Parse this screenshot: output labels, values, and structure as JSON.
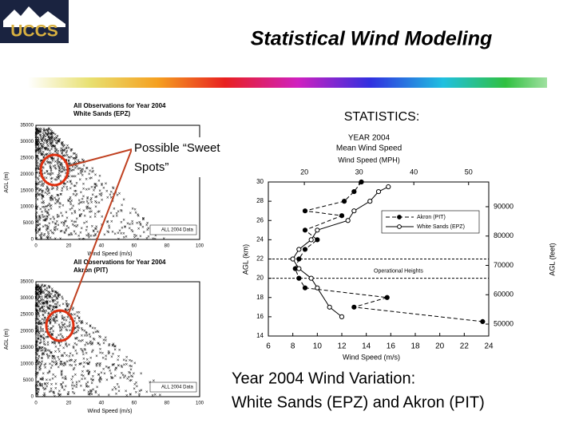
{
  "header": {
    "logo": "UCCS",
    "title": "Statistical Wind Modeling"
  },
  "stats_label": "STATISTICS:",
  "annotation": [
    "Possible “Sweet",
    "Spots”"
  ],
  "caption": [
    "Year 2004 Wind Variation:",
    "White Sands (EPZ) and Akron (PIT)"
  ],
  "scatter_plots": [
    {
      "title": [
        "All Observations for Year 2004",
        "White Sands (EPZ)"
      ],
      "y_label": "AGL (m)",
      "x_label": "Wind Speed (m/s)",
      "yticks": [
        0,
        5000,
        10000,
        15000,
        20000,
        25000,
        30000,
        35000
      ],
      "xticks": [
        0,
        20,
        40,
        60,
        80,
        100
      ],
      "legend": "ALL 2004 Data"
    },
    {
      "title": [
        "All Observations for Year 2004",
        "Akron (PIT)"
      ],
      "y_label": "AGL (m)",
      "x_label": "Wind Speed (m/s)",
      "yticks": [
        0,
        5000,
        10000,
        15000,
        20000,
        25000,
        30000,
        35000
      ],
      "xticks": [
        0,
        20,
        40,
        60,
        80,
        100
      ],
      "legend": "ALL 2004 Data"
    }
  ],
  "mean_chart": {
    "title": [
      "YEAR 2004",
      "Mean Wind Speed"
    ],
    "top_label": "Wind Speed (MPH)",
    "top_ticks": [
      20,
      30,
      40,
      50
    ],
    "x_label": "Wind Speed (m/s)",
    "xlim": [
      6,
      24
    ],
    "xticks": [
      6,
      8,
      10,
      12,
      14,
      16,
      18,
      20,
      22,
      24
    ],
    "y_label": "AGL (km)",
    "ylim": [
      14,
      30
    ],
    "yticks": [
      14,
      16,
      18,
      20,
      22,
      24,
      26,
      28,
      30
    ],
    "y2_label": "AGL (feet)",
    "y2ticks": [
      50000,
      60000,
      70000,
      80000,
      90000
    ],
    "operational_label": "Operational Heights",
    "operational_band": [
      20,
      22
    ],
    "series": [
      {
        "name": "Akron (PIT)",
        "color": "#000000",
        "filled": true,
        "dash": true,
        "x": [
          13.6,
          13.0,
          12.2,
          9.0,
          12.0,
          9.0,
          10.0,
          9.0,
          8.5,
          8.2,
          8.5,
          9.0,
          15.7,
          13.0,
          23.5
        ],
        "y": [
          30,
          29,
          28,
          27,
          26.5,
          25,
          24,
          23,
          22,
          21,
          20,
          19,
          18,
          17,
          15.5
        ]
      },
      {
        "name": "White Sands (EPZ)",
        "color": "#000000",
        "filled": false,
        "dash": false,
        "x": [
          15.8,
          15.0,
          14.3,
          13.0,
          12.5,
          10.0,
          9.5,
          8.5,
          8.0,
          8.5,
          9.5,
          10.0,
          11.0,
          12.0
        ],
        "y": [
          29.5,
          29,
          28,
          27,
          26,
          25,
          24,
          23,
          22,
          21,
          20,
          19,
          17,
          16
        ]
      }
    ]
  }
}
